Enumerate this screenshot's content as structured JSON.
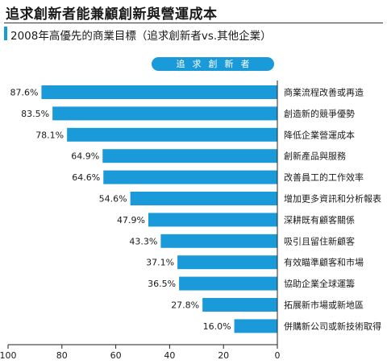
{
  "title": "追求創新者能兼顧創新與營運成本",
  "subtitle": "2008年高優先的商業目標（追求創新者vs.其他企業）",
  "chart_data": {
    "type": "bar",
    "orientation": "horizontal",
    "legend": [
      "追求創新者"
    ],
    "series": [
      {
        "name": "追求創新者",
        "values": [
          87.6,
          83.5,
          78.1,
          64.9,
          64.6,
          54.6,
          47.9,
          43.3,
          37.1,
          36.5,
          27.8,
          16.0
        ]
      }
    ],
    "categories": [
      "商業流程改善或再造",
      "創造新的競爭優勢",
      "降低企業營運成本",
      "創新產品與服務",
      "改善員工的工作效率",
      "增加更多資訊和分析報表",
      "深耕既有顧客關係",
      "吸引且留住新顧客",
      "有效瞄準顧客和市場",
      "協助企業全球運籌",
      "拓展新市場或新地區",
      "併購新公司或新技術取得"
    ],
    "value_labels": [
      "87.6%",
      "83.5%",
      "78.1%",
      "64.9%",
      "64.6%",
      "54.6%",
      "47.9%",
      "43.3%",
      "37.1%",
      "36.5%",
      "27.8%",
      "16.0%"
    ],
    "x_ticks": [
      "100",
      "80",
      "60",
      "40",
      "20",
      "0"
    ],
    "x_reversed": true,
    "xlim": [
      0,
      100
    ],
    "grid": false
  },
  "colors": {
    "bar": "#1a9ad9",
    "pill": "#1a9ad9",
    "subtitle_marker": "#1a9ad9",
    "axis": "#222222",
    "text": "#1a1a1a"
  }
}
